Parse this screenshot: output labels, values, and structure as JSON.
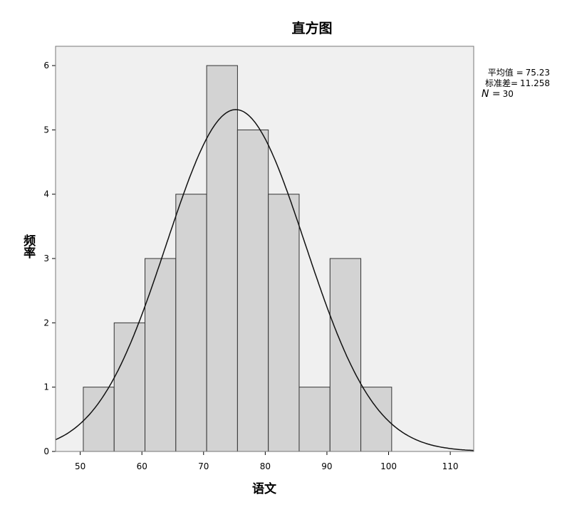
{
  "chart_data": {
    "type": "histogram",
    "title": "直方图",
    "x_label": "语文",
    "y_label": "频率",
    "bins": [
      50.5,
      55.5,
      60.5,
      65.5,
      70.5,
      75.5,
      80.5,
      85.5,
      90.5,
      95.5,
      100.5
    ],
    "counts": [
      1,
      2,
      3,
      4,
      6,
      5,
      4,
      1,
      3,
      1
    ],
    "color": "#d3d3d3",
    "xlim": [
      46,
      113.8
    ],
    "ylim": [
      0,
      6.3
    ],
    "xticks": [
      50,
      60,
      70,
      80,
      90,
      100,
      110
    ],
    "yticks": [
      0,
      1,
      2,
      3,
      4,
      5,
      6
    ],
    "stats": [
      {
        "label": "平均值 =",
        "value": 75.23
      },
      {
        "label": "标准差=",
        "value": 11.258
      },
      {
        "label": "N =",
        "value": 30
      }
    ]
  }
}
